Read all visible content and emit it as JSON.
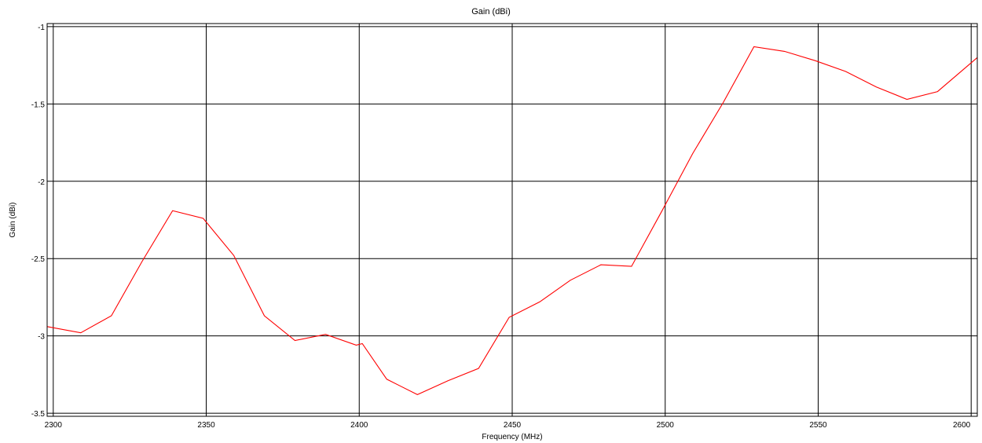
{
  "chart_data": {
    "type": "line",
    "title": "Gain (dBi)",
    "xlabel": "Frequency (MHz)",
    "ylabel": "Gain (dBi)",
    "xlim": [
      2298,
      2602
    ],
    "ylim": [
      -3.52,
      -0.98
    ],
    "x_ticks": [
      2300,
      2350,
      2400,
      2450,
      2500,
      2550,
      2600
    ],
    "y_ticks": [
      -1,
      -1.5,
      -2,
      -2.5,
      -3,
      -3.5
    ],
    "grid": true,
    "legend": "none",
    "colors": {
      "series": "#ff0000",
      "grid": "#000000",
      "frame": "#000000"
    },
    "series": [
      {
        "x": [
          2298,
          2309,
          2319,
          2329,
          2339,
          2349,
          2359,
          2369,
          2379,
          2389,
          2399,
          2401,
          2409,
          2419,
          2429,
          2439,
          2449,
          2459,
          2469,
          2479,
          2489,
          2499,
          2509,
          2519,
          2529,
          2539,
          2549,
          2559,
          2569,
          2579,
          2589,
          2602
        ],
        "y": [
          -2.94,
          -2.98,
          -2.87,
          -2.52,
          -2.19,
          -2.24,
          -2.48,
          -2.87,
          -3.03,
          -2.99,
          -3.06,
          -3.05,
          -3.28,
          -3.38,
          -3.29,
          -3.21,
          -2.88,
          -2.78,
          -2.64,
          -2.54,
          -2.55,
          -2.19,
          -1.82,
          -1.49,
          -1.13,
          -1.16,
          -1.22,
          -1.29,
          -1.39,
          -1.47,
          -1.42,
          -1.2
        ]
      }
    ]
  }
}
